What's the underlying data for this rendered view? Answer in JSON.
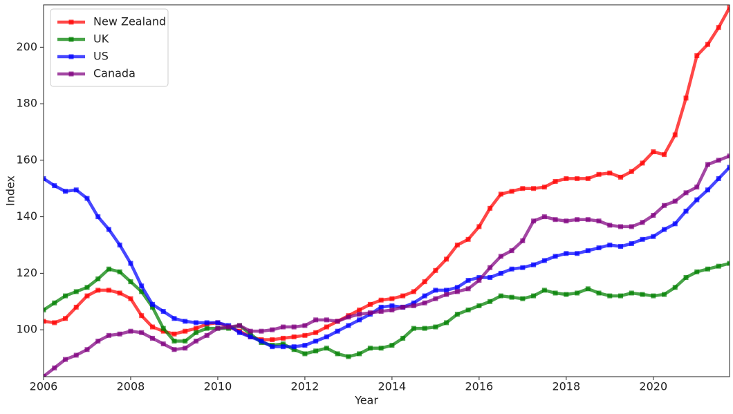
{
  "chart_data": {
    "type": "line",
    "xlabel": "Year",
    "ylabel": "Index",
    "x": [
      2006,
      2006.25,
      2006.5,
      2006.75,
      2007,
      2007.25,
      2007.5,
      2007.75,
      2008,
      2008.25,
      2008.5,
      2008.75,
      2009,
      2009.25,
      2009.5,
      2009.75,
      2010,
      2010.25,
      2010.5,
      2010.75,
      2011,
      2011.25,
      2011.5,
      2011.75,
      2012,
      2012.25,
      2012.5,
      2012.75,
      2013,
      2013.25,
      2013.5,
      2013.75,
      2014,
      2014.25,
      2014.5,
      2014.75,
      2015,
      2015.25,
      2015.5,
      2015.75,
      2016,
      2016.25,
      2016.5,
      2016.75,
      2017,
      2017.25,
      2017.5,
      2017.75,
      2018,
      2018.25,
      2018.5,
      2018.75,
      2019,
      2019.25,
      2019.5,
      2019.75,
      2020,
      2020.25,
      2020.5,
      2020.75,
      2021,
      2021.25,
      2021.5,
      2021.75
    ],
    "series": [
      {
        "name": "New Zealand",
        "color": "#ff0000",
        "values": [
          103,
          102.5,
          104,
          108,
          112,
          114,
          114,
          113,
          111,
          105,
          101,
          99.5,
          98.5,
          99.5,
          100.5,
          102,
          102.5,
          101,
          99.5,
          97.5,
          96.5,
          96.5,
          97,
          97.5,
          98,
          99,
          101,
          103,
          105,
          107,
          109,
          110.5,
          111,
          112,
          113.5,
          117,
          121,
          125,
          130,
          132,
          136.5,
          143,
          148,
          149,
          150,
          150,
          150.5,
          152.5,
          153.5,
          153.5,
          153.5,
          155,
          155.5,
          154,
          156,
          159,
          163,
          162,
          169,
          182,
          197,
          201,
          207,
          214
        ]
      },
      {
        "name": "UK",
        "color": "#008000",
        "values": [
          107,
          109.5,
          112,
          113.5,
          115,
          118,
          121.5,
          120.5,
          117,
          113.5,
          108,
          100.5,
          96,
          96,
          99,
          100.5,
          100.5,
          100.5,
          101.5,
          98.5,
          95.5,
          94.5,
          95,
          93,
          91.5,
          92.5,
          93.5,
          91.5,
          90.5,
          91.5,
          93.5,
          93.5,
          94.5,
          97,
          100.5,
          100.5,
          101,
          102.5,
          105.5,
          107,
          108.5,
          110,
          112,
          111.5,
          111,
          112,
          114,
          113,
          112.5,
          113,
          114.5,
          113,
          112,
          112,
          113,
          112.5,
          112,
          112.5,
          115,
          118.5,
          120.5,
          121.5,
          122.5,
          123.5
        ]
      },
      {
        "name": "US",
        "color": "#0000ff",
        "values": [
          153.5,
          151,
          149,
          149.5,
          146.5,
          140,
          135.5,
          130,
          123.5,
          115.5,
          109,
          106.5,
          104,
          103,
          102.5,
          102.5,
          102.5,
          101.5,
          99,
          97.5,
          96,
          94,
          94,
          94,
          94.5,
          96,
          97.5,
          99.5,
          101.5,
          103.5,
          105.5,
          108,
          108.5,
          108,
          109.5,
          112,
          114,
          114,
          115,
          117.5,
          118.5,
          118.5,
          120,
          121.5,
          122,
          123,
          124.5,
          126,
          127,
          127,
          128,
          129,
          130,
          129.5,
          130.5,
          132,
          133,
          135.5,
          137.5,
          142,
          146,
          149.5,
          153.5,
          157.5
        ]
      },
      {
        "name": "Canada",
        "color": "#800080",
        "values": [
          83.5,
          86.5,
          89.5,
          91,
          93,
          96,
          98,
          98.5,
          99.5,
          99,
          97,
          95,
          93,
          93.5,
          96,
          98,
          100.5,
          101,
          101.5,
          99.5,
          99.5,
          100,
          101,
          101,
          101.5,
          103.5,
          103.5,
          103,
          104.5,
          105.5,
          106,
          106.5,
          107,
          108,
          108.5,
          109.5,
          111,
          112.5,
          113.5,
          114.5,
          117.5,
          122,
          126,
          128,
          131.5,
          138.5,
          140,
          139,
          138.5,
          139,
          139,
          138.5,
          137,
          136.5,
          136.5,
          138,
          140.5,
          144,
          145.5,
          148.5,
          150.5,
          158.5,
          160,
          161.5
        ]
      }
    ],
    "xlim": [
      2006,
      2021.75
    ],
    "xticks": [
      2006,
      2008,
      2010,
      2012,
      2014,
      2016,
      2018,
      2020
    ],
    "ylim": [
      83.4,
      215
    ],
    "yticks": [
      100,
      120,
      140,
      160,
      180,
      200
    ],
    "grid": false,
    "legend": "upper-left"
  }
}
